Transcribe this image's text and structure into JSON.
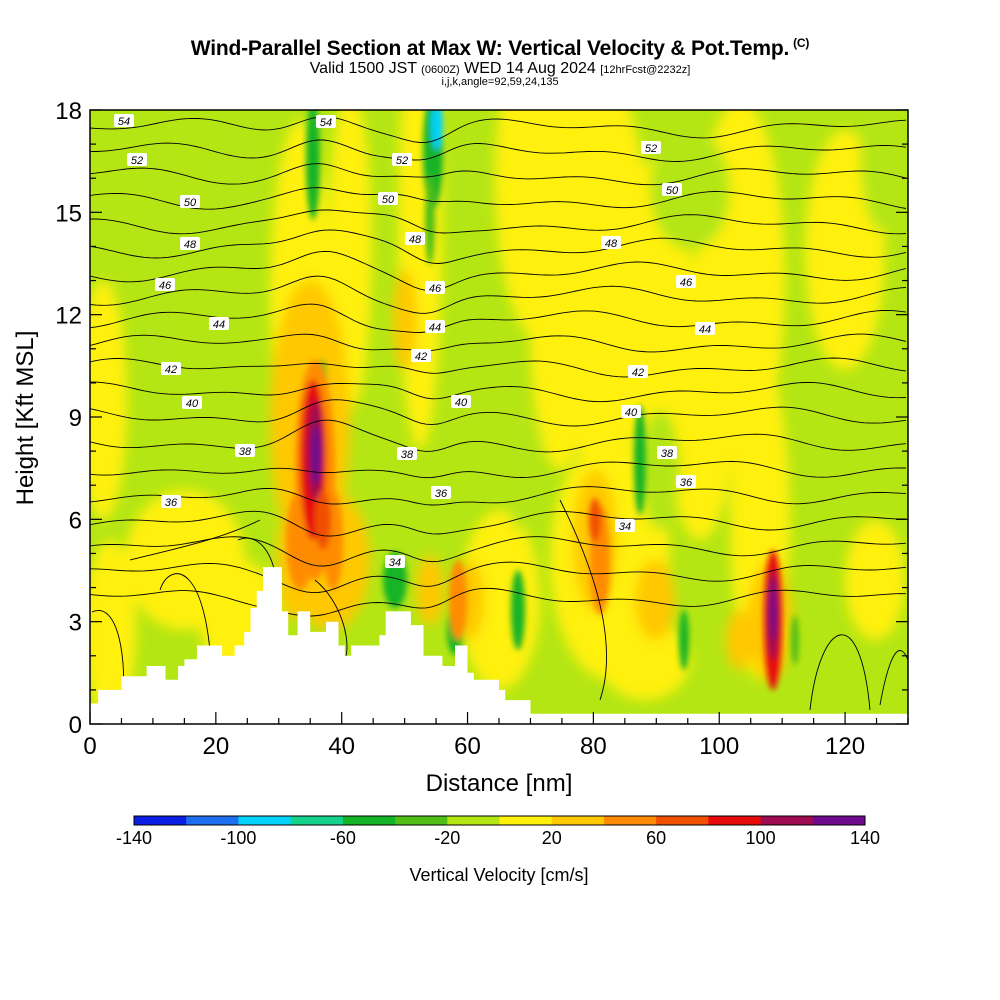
{
  "header": {
    "title": "Wind-Parallel Section at Max W: Vertical Velocity & Pot.Temp.",
    "copyright": "(C)",
    "valid_main": "Valid 1500 JST",
    "valid_utc": "(0600Z)",
    "valid_date": "WED 14 Aug 2024",
    "valid_fcst": "[12hrFcst@2232z]",
    "params": "i,j,k,angle=92,59,24,135"
  },
  "chart_data": {
    "type": "heatmap",
    "xlabel": "Distance [nm]",
    "ylabel": "Height [Kft MSL]",
    "xlim": [
      0,
      130
    ],
    "ylim": [
      0,
      18
    ],
    "x_ticks": [
      "0",
      "20",
      "40",
      "60",
      "80",
      "100",
      "120"
    ],
    "y_ticks": [
      "0",
      "3",
      "6",
      "9",
      "12",
      "15",
      "18"
    ],
    "colorbar": {
      "label": "Vertical Velocity [cm/s]",
      "ticks": [
        "-140",
        "-100",
        "-60",
        "-20",
        "20",
        "60",
        "100",
        "140"
      ],
      "bounds": [
        -140,
        140
      ],
      "colors": [
        "#0a1ee6",
        "#1e6ef0",
        "#00d2fa",
        "#14d28c",
        "#14b428",
        "#50be14",
        "#b4e614",
        "#fff00a",
        "#ffc800",
        "#ff8c00",
        "#f05000",
        "#e60a0a",
        "#a00a50",
        "#6e0a8c"
      ]
    },
    "theta_contour_labels": [
      "54",
      "52",
      "50",
      "48",
      "46",
      "44",
      "42",
      "40",
      "38",
      "36",
      "34"
    ],
    "terrain_profile": [
      [
        0,
        0.6
      ],
      [
        1.3,
        0.6
      ],
      [
        1.3,
        1.0
      ],
      [
        5,
        1.0
      ],
      [
        5,
        1.4
      ],
      [
        9,
        1.4
      ],
      [
        9,
        1.7
      ],
      [
        12,
        1.7
      ],
      [
        12,
        1.3
      ],
      [
        14,
        1.3
      ],
      [
        14,
        1.7
      ],
      [
        15,
        1.7
      ],
      [
        15,
        1.9
      ],
      [
        17,
        1.9
      ],
      [
        17,
        2.3
      ],
      [
        21,
        2.3
      ],
      [
        21,
        2.0
      ],
      [
        23,
        2.0
      ],
      [
        23,
        2.3
      ],
      [
        24.5,
        2.3
      ],
      [
        24.5,
        2.7
      ],
      [
        25.5,
        2.7
      ],
      [
        25.5,
        3.4
      ],
      [
        26.5,
        3.4
      ],
      [
        26.5,
        3.9
      ],
      [
        27.5,
        3.9
      ],
      [
        27.5,
        4.6
      ],
      [
        30.5,
        4.6
      ],
      [
        30.5,
        3.3
      ],
      [
        31.5,
        3.3
      ],
      [
        31.5,
        2.6
      ],
      [
        33,
        2.6
      ],
      [
        33,
        3.3
      ],
      [
        35,
        3.3
      ],
      [
        35,
        2.7
      ],
      [
        37.5,
        2.7
      ],
      [
        37.5,
        3.0
      ],
      [
        39.5,
        3.0
      ],
      [
        39.5,
        2.3
      ],
      [
        40.5,
        2.3
      ],
      [
        40.5,
        2.0
      ],
      [
        41.5,
        2.0
      ],
      [
        41.5,
        2.3
      ],
      [
        46,
        2.3
      ],
      [
        46,
        2.6
      ],
      [
        47,
        2.6
      ],
      [
        47,
        3.3
      ],
      [
        51,
        3.3
      ],
      [
        51,
        2.9
      ],
      [
        53,
        2.9
      ],
      [
        53,
        2.0
      ],
      [
        56,
        2.0
      ],
      [
        56,
        1.7
      ],
      [
        58,
        1.7
      ],
      [
        58,
        2.3
      ],
      [
        60,
        2.3
      ],
      [
        60,
        1.5
      ],
      [
        61,
        1.5
      ],
      [
        61,
        1.3
      ],
      [
        65,
        1.3
      ],
      [
        65,
        1.0
      ],
      [
        66,
        1.0
      ],
      [
        66,
        0.7
      ],
      [
        70,
        0.7
      ],
      [
        70,
        0.3
      ],
      [
        130,
        0.3
      ]
    ],
    "peak_updrafts": [
      {
        "x_nm": 36,
        "height_kft": 7.5,
        "w_cm_s": 140
      },
      {
        "x_nm": 108.5,
        "height_kft": 3,
        "w_cm_s": 140
      }
    ]
  }
}
